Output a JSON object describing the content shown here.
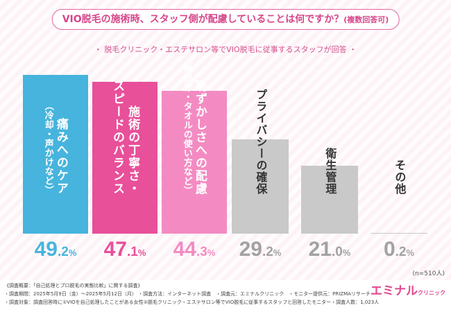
{
  "chart_data": {
    "type": "bar",
    "title": "VIO脱毛の施術時、スタッフ側が配慮していることは何ですか？",
    "title_note": "(複数回答可)",
    "subtitle": "・ 脱毛クリニック・エステサロン等でVIO脱毛に従事するスタッフが回答 ・",
    "xlabel": "",
    "ylabel": "",
    "unit": "%",
    "categories": [
      {
        "label": [
          "痛みへのケア"
        ],
        "note": "（冷却・声かけなど）"
      },
      {
        "label": [
          "施術の丁寧さ・",
          "スピードのバランス"
        ]
      },
      {
        "label": [
          "恥ずかしさへの配慮"
        ],
        "note": "（声かけ・タオルの使い方など）"
      },
      {
        "label": [
          "プライバシーの確保"
        ]
      },
      {
        "label": [
          "衛生管理"
        ]
      },
      {
        "label": [
          "その他"
        ]
      }
    ],
    "values": [
      49.2,
      47.1,
      44.3,
      29.2,
      21.0,
      0.2
    ],
    "value_labels": [
      {
        "whole": "49",
        "frac": ".2"
      },
      {
        "whole": "47",
        "frac": ".1"
      },
      {
        "whole": "44",
        "frac": ".3"
      },
      {
        "whole": "29",
        "frac": ".2"
      },
      {
        "whole": "21",
        "frac": ".0"
      },
      {
        "whole": "0",
        "frac": ".2"
      }
    ],
    "bar_colors": [
      "#47b4dd",
      "#e8509a",
      "#f38bc2",
      "#c9c9c9",
      "#c9c9c9",
      "#c9c9c9"
    ],
    "value_label_colors": [
      "#47b4dd",
      "#e8509a",
      "#f38bc2",
      "#a2a2a2",
      "#a2a2a2",
      "#a2a2a2"
    ],
    "label_colors": [
      "#ffffff",
      "#ffffff",
      "#ffffff",
      "#333333",
      "#333333",
      "#333333"
    ]
  },
  "sample_size": "(n=510人)",
  "footer": {
    "heading": "《調査概要：「自己処理とプロ脱毛の実態比較」に関する調査》",
    "period_line": "・調査期間：2025年5月9日（金）～2025年5月12日（月） ・調査方法：インターネット調査　・調査元：エミナルクリニック　・モニター提供元：PRIZMAリサーチ",
    "target_line": "・調査対象：調査回答時に①VIOを自己処理したことがある女性②脱毛クリニック・エステサロン等でVIO脱毛に従事するスタッフと回答したモニター・調査人数：1,023人"
  },
  "logo": {
    "main": "エミナル",
    "sub": "クリニック"
  },
  "colors": {
    "accent": "#d6468a",
    "title_border": "#e4649f",
    "logo": "#e0488e"
  }
}
